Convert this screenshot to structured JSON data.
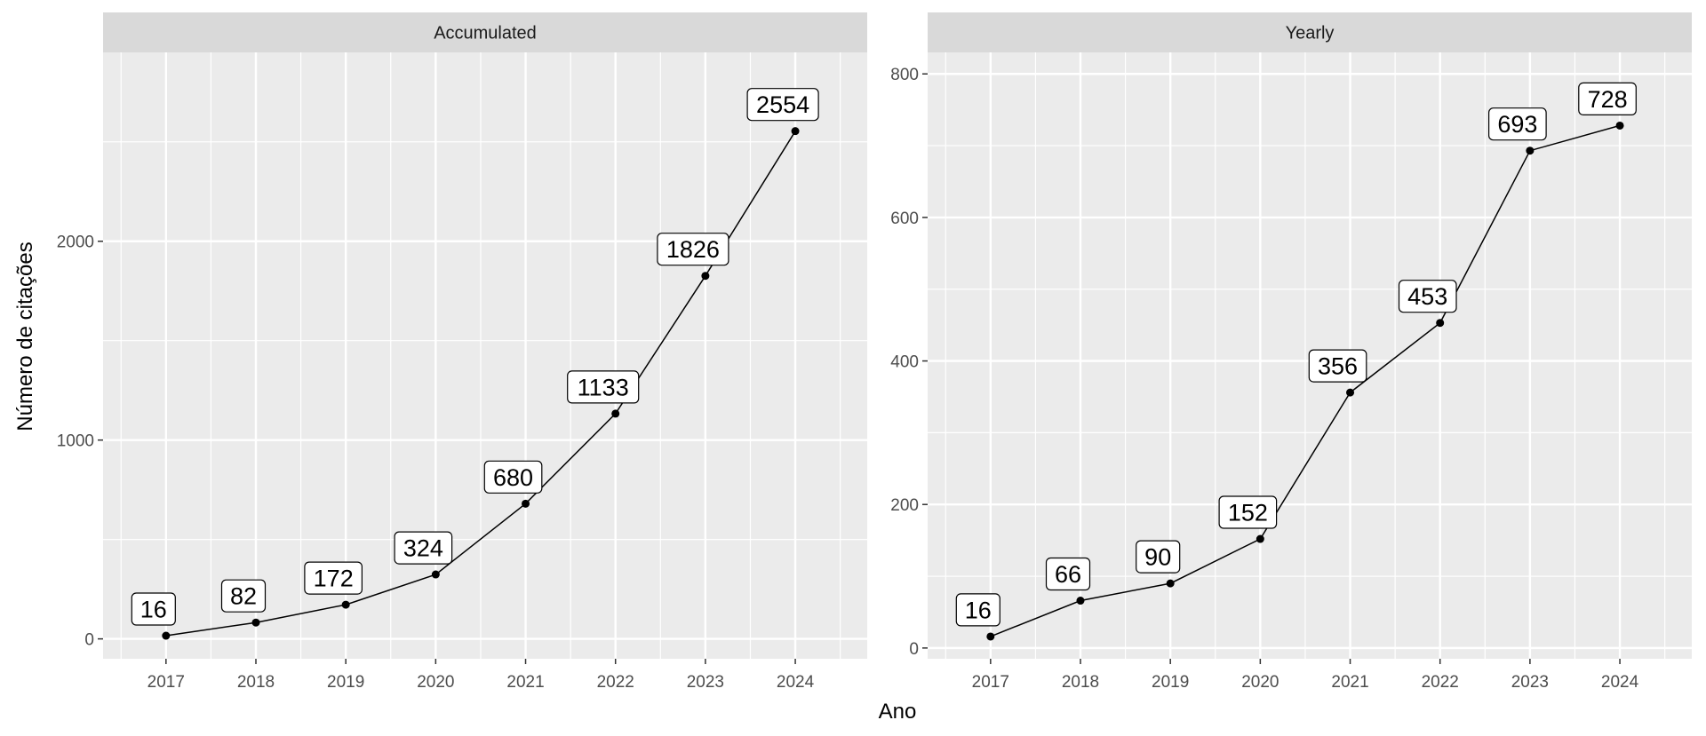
{
  "chart_data": {
    "type": "line",
    "xlabel": "Ano",
    "ylabel": "Número de citações",
    "x": [
      2017,
      2018,
      2019,
      2020,
      2021,
      2022,
      2023,
      2024
    ],
    "panels": [
      {
        "title": "Accumulated",
        "values": [
          16,
          82,
          172,
          324,
          680,
          1133,
          1826,
          2554
        ],
        "ylim": [
          -100,
          2950
        ],
        "yticks": [
          0,
          1000,
          2000
        ]
      },
      {
        "title": "Yearly",
        "values": [
          16,
          66,
          90,
          152,
          356,
          453,
          693,
          728
        ],
        "ylim": [
          -15,
          830
        ],
        "yticks": [
          0,
          200,
          400,
          600,
          800
        ]
      }
    ],
    "xlim": [
      2016.3,
      2024.8
    ],
    "grid": true,
    "legend": "none"
  },
  "colors": {
    "panel_background": "#ebebeb",
    "strip_background": "#d9d9d9",
    "grid": "#ffffff",
    "line": "#000000"
  }
}
